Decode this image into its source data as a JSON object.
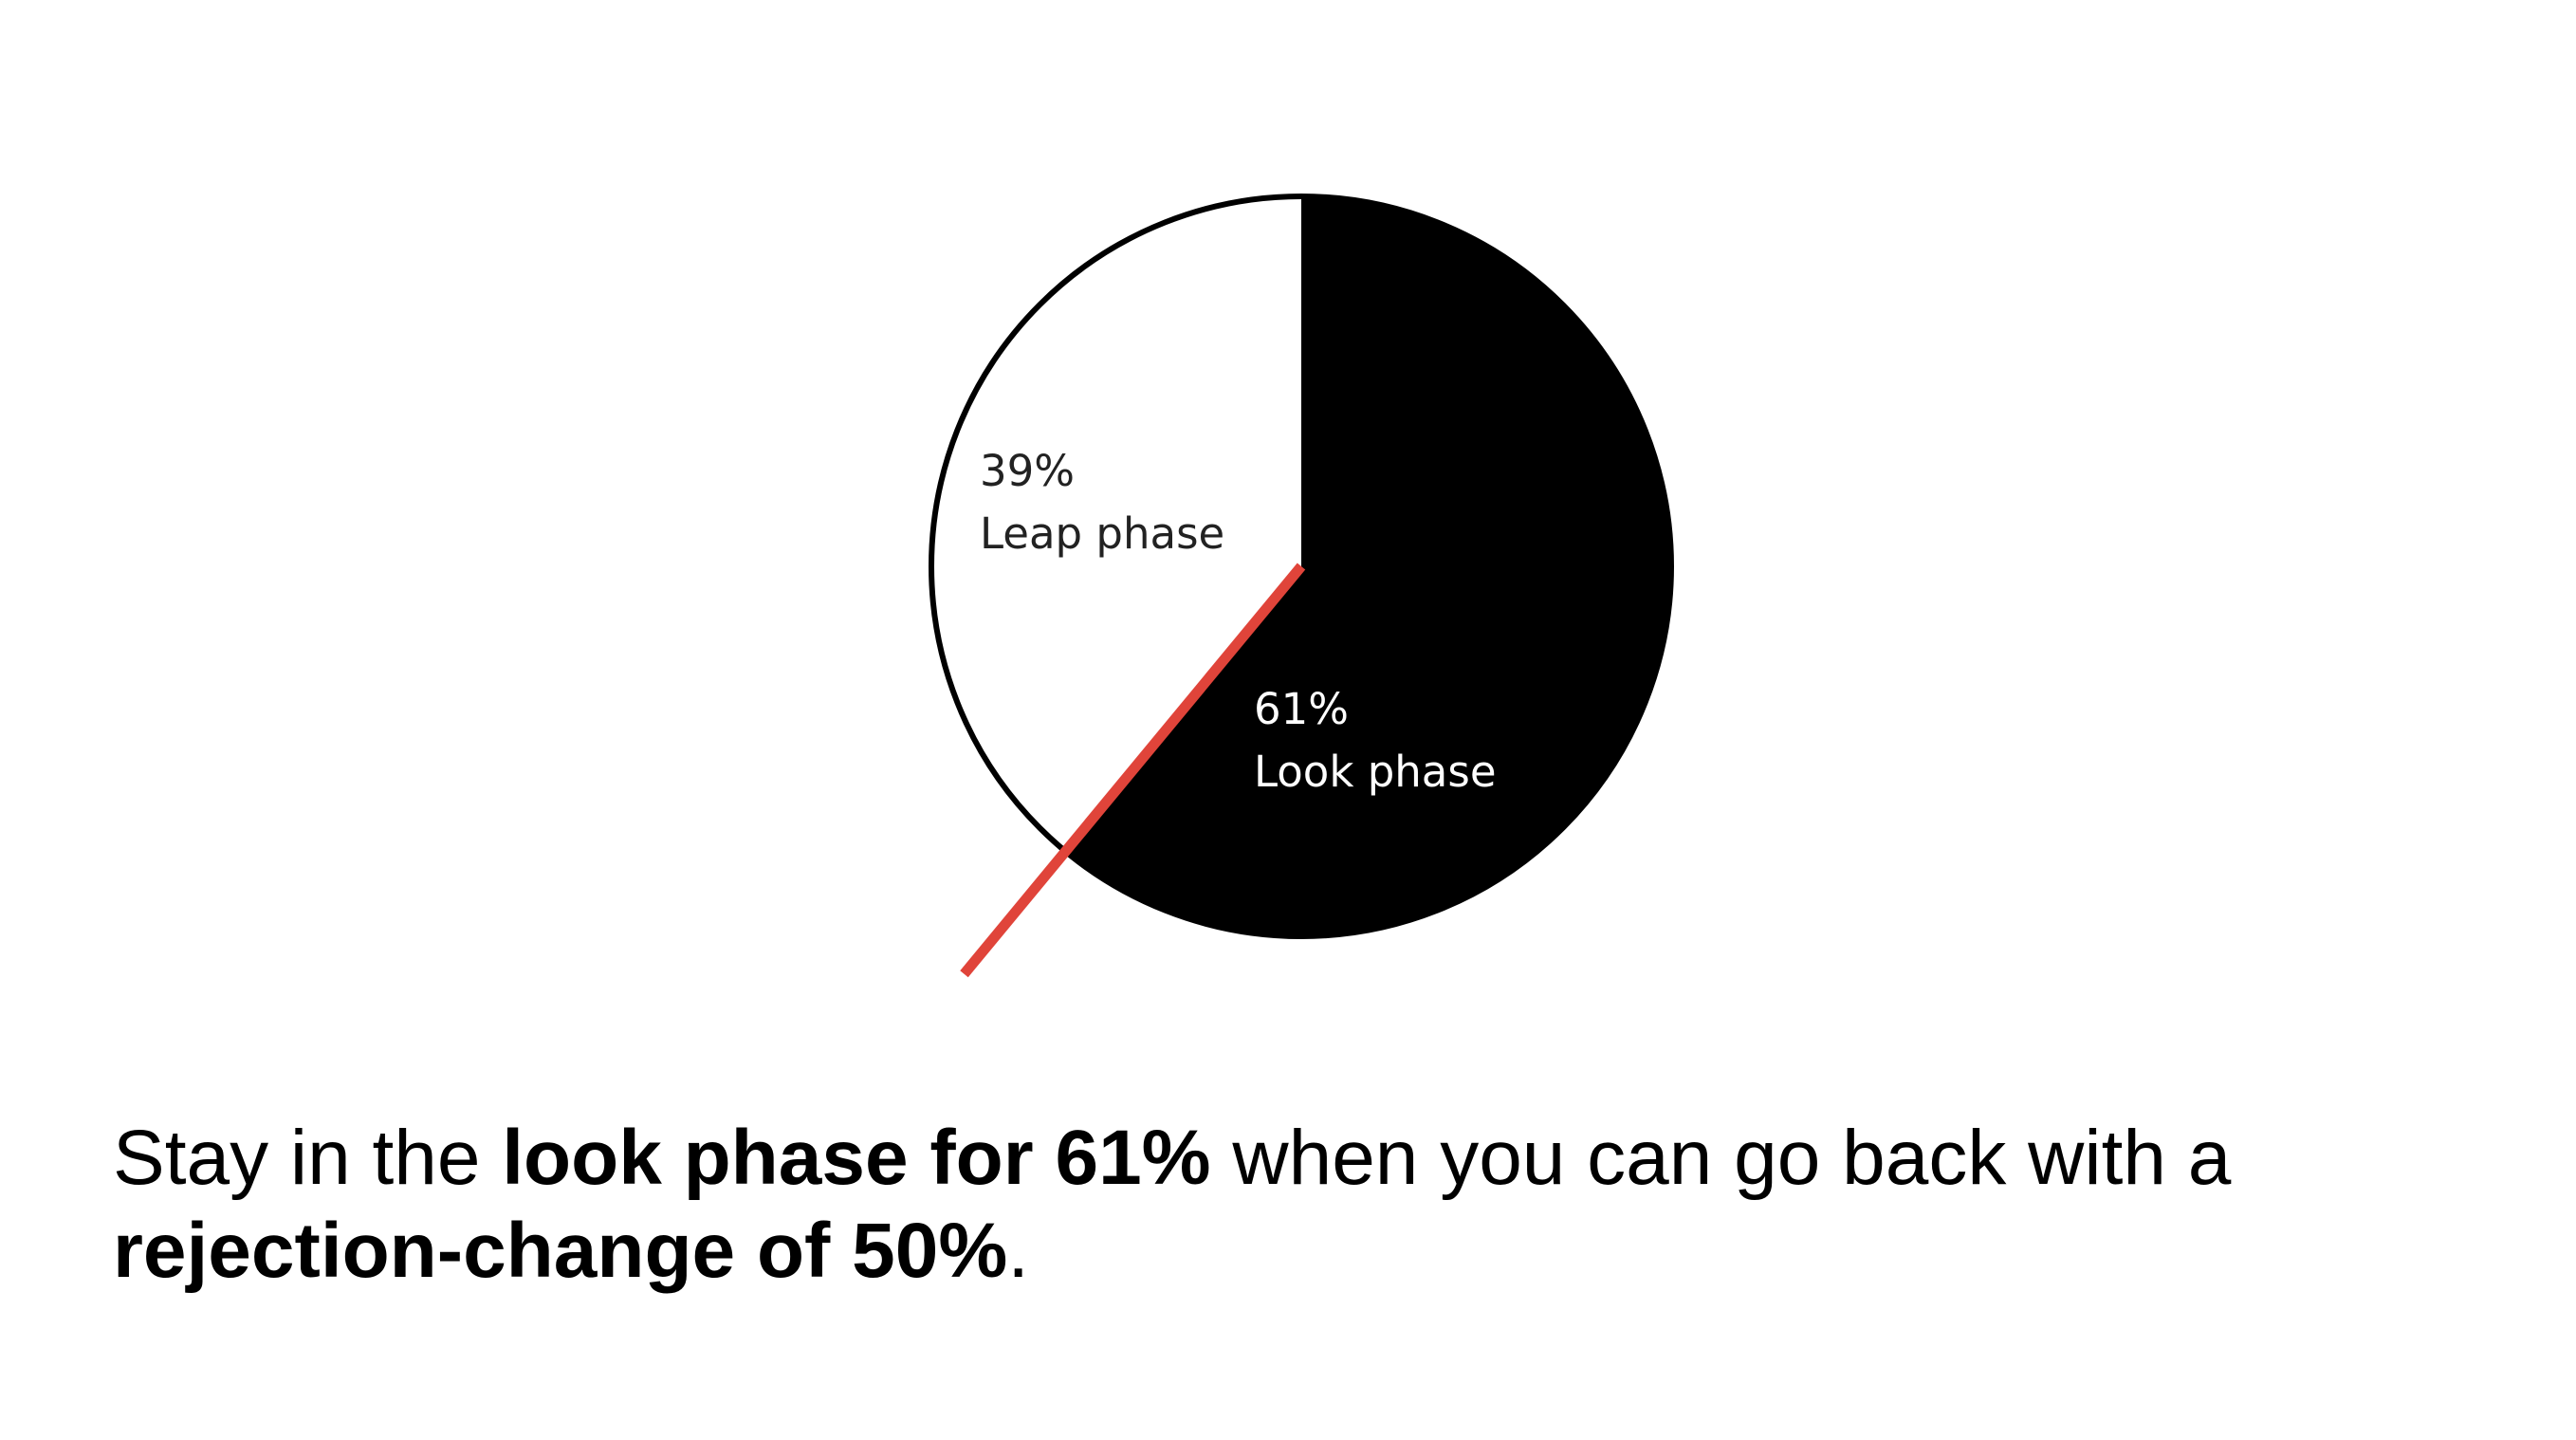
{
  "chart_data": {
    "type": "pie",
    "slices": [
      {
        "label": "Look phase",
        "percent_label": "61%",
        "value": 61,
        "color": "#000000",
        "text_color": "#ffffff"
      },
      {
        "label": "Leap phase",
        "percent_label": "39%",
        "value": 39,
        "color": "#ffffff",
        "text_color": "#222222"
      }
    ],
    "start": "12 o'clock",
    "direction": "clockwise",
    "marker_color": "#e0443a",
    "outline_color": "#000000"
  },
  "caption": {
    "part1": "Stay in the ",
    "part2": "look phase for 61%",
    "part3": " when you can go back with a",
    "part4": "rejection-change of 50%",
    "part5": "."
  }
}
